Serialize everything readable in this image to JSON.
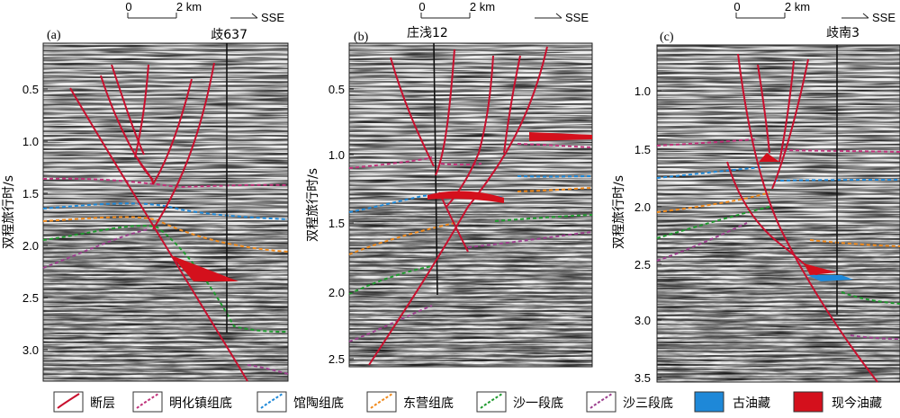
{
  "panels": [
    {
      "label": "(a)",
      "well_name": "歧637",
      "y_ticks": [
        "0.5",
        "1.0",
        "1.5",
        "2.0",
        "2.5",
        "3.0"
      ],
      "y_axis_label": "双程旅行时/s",
      "scale_start": "0",
      "scale_end": "2 km",
      "direction": "SSE"
    },
    {
      "label": "(b)",
      "well_name": "庄浅12",
      "y_ticks": [
        "0.5",
        "1.0",
        "1.5",
        "2.0",
        "2.5"
      ],
      "y_axis_label": "双程旅行时/s",
      "scale_start": "0",
      "scale_end": "2 km",
      "direction": "SSE"
    },
    {
      "label": "(c)",
      "well_name": "歧南3",
      "y_ticks": [
        "1.0",
        "1.5",
        "2.0",
        "2.5",
        "3.0",
        "3.5"
      ],
      "y_axis_label": "双程旅行时/s",
      "scale_start": "0",
      "scale_end": "2 km",
      "direction": "SSE"
    }
  ],
  "legend": [
    {
      "label": "断层",
      "color": "#c8102e",
      "kind": "fault"
    },
    {
      "label": "明化镇组底",
      "color": "#c0327a",
      "kind": "dash"
    },
    {
      "label": "馆陶组底",
      "color": "#1e88d8",
      "kind": "dash"
    },
    {
      "label": "东营组底",
      "color": "#f08a1c",
      "kind": "dash"
    },
    {
      "label": "沙一段底",
      "color": "#1f9a2e",
      "kind": "dash"
    },
    {
      "label": "沙三段底",
      "color": "#9c3f8e",
      "kind": "dash"
    },
    {
      "label": "古油藏",
      "color": "#1e88d8",
      "kind": "fill"
    },
    {
      "label": "现今油藏",
      "color": "#d4101c",
      "kind": "fill"
    }
  ]
}
